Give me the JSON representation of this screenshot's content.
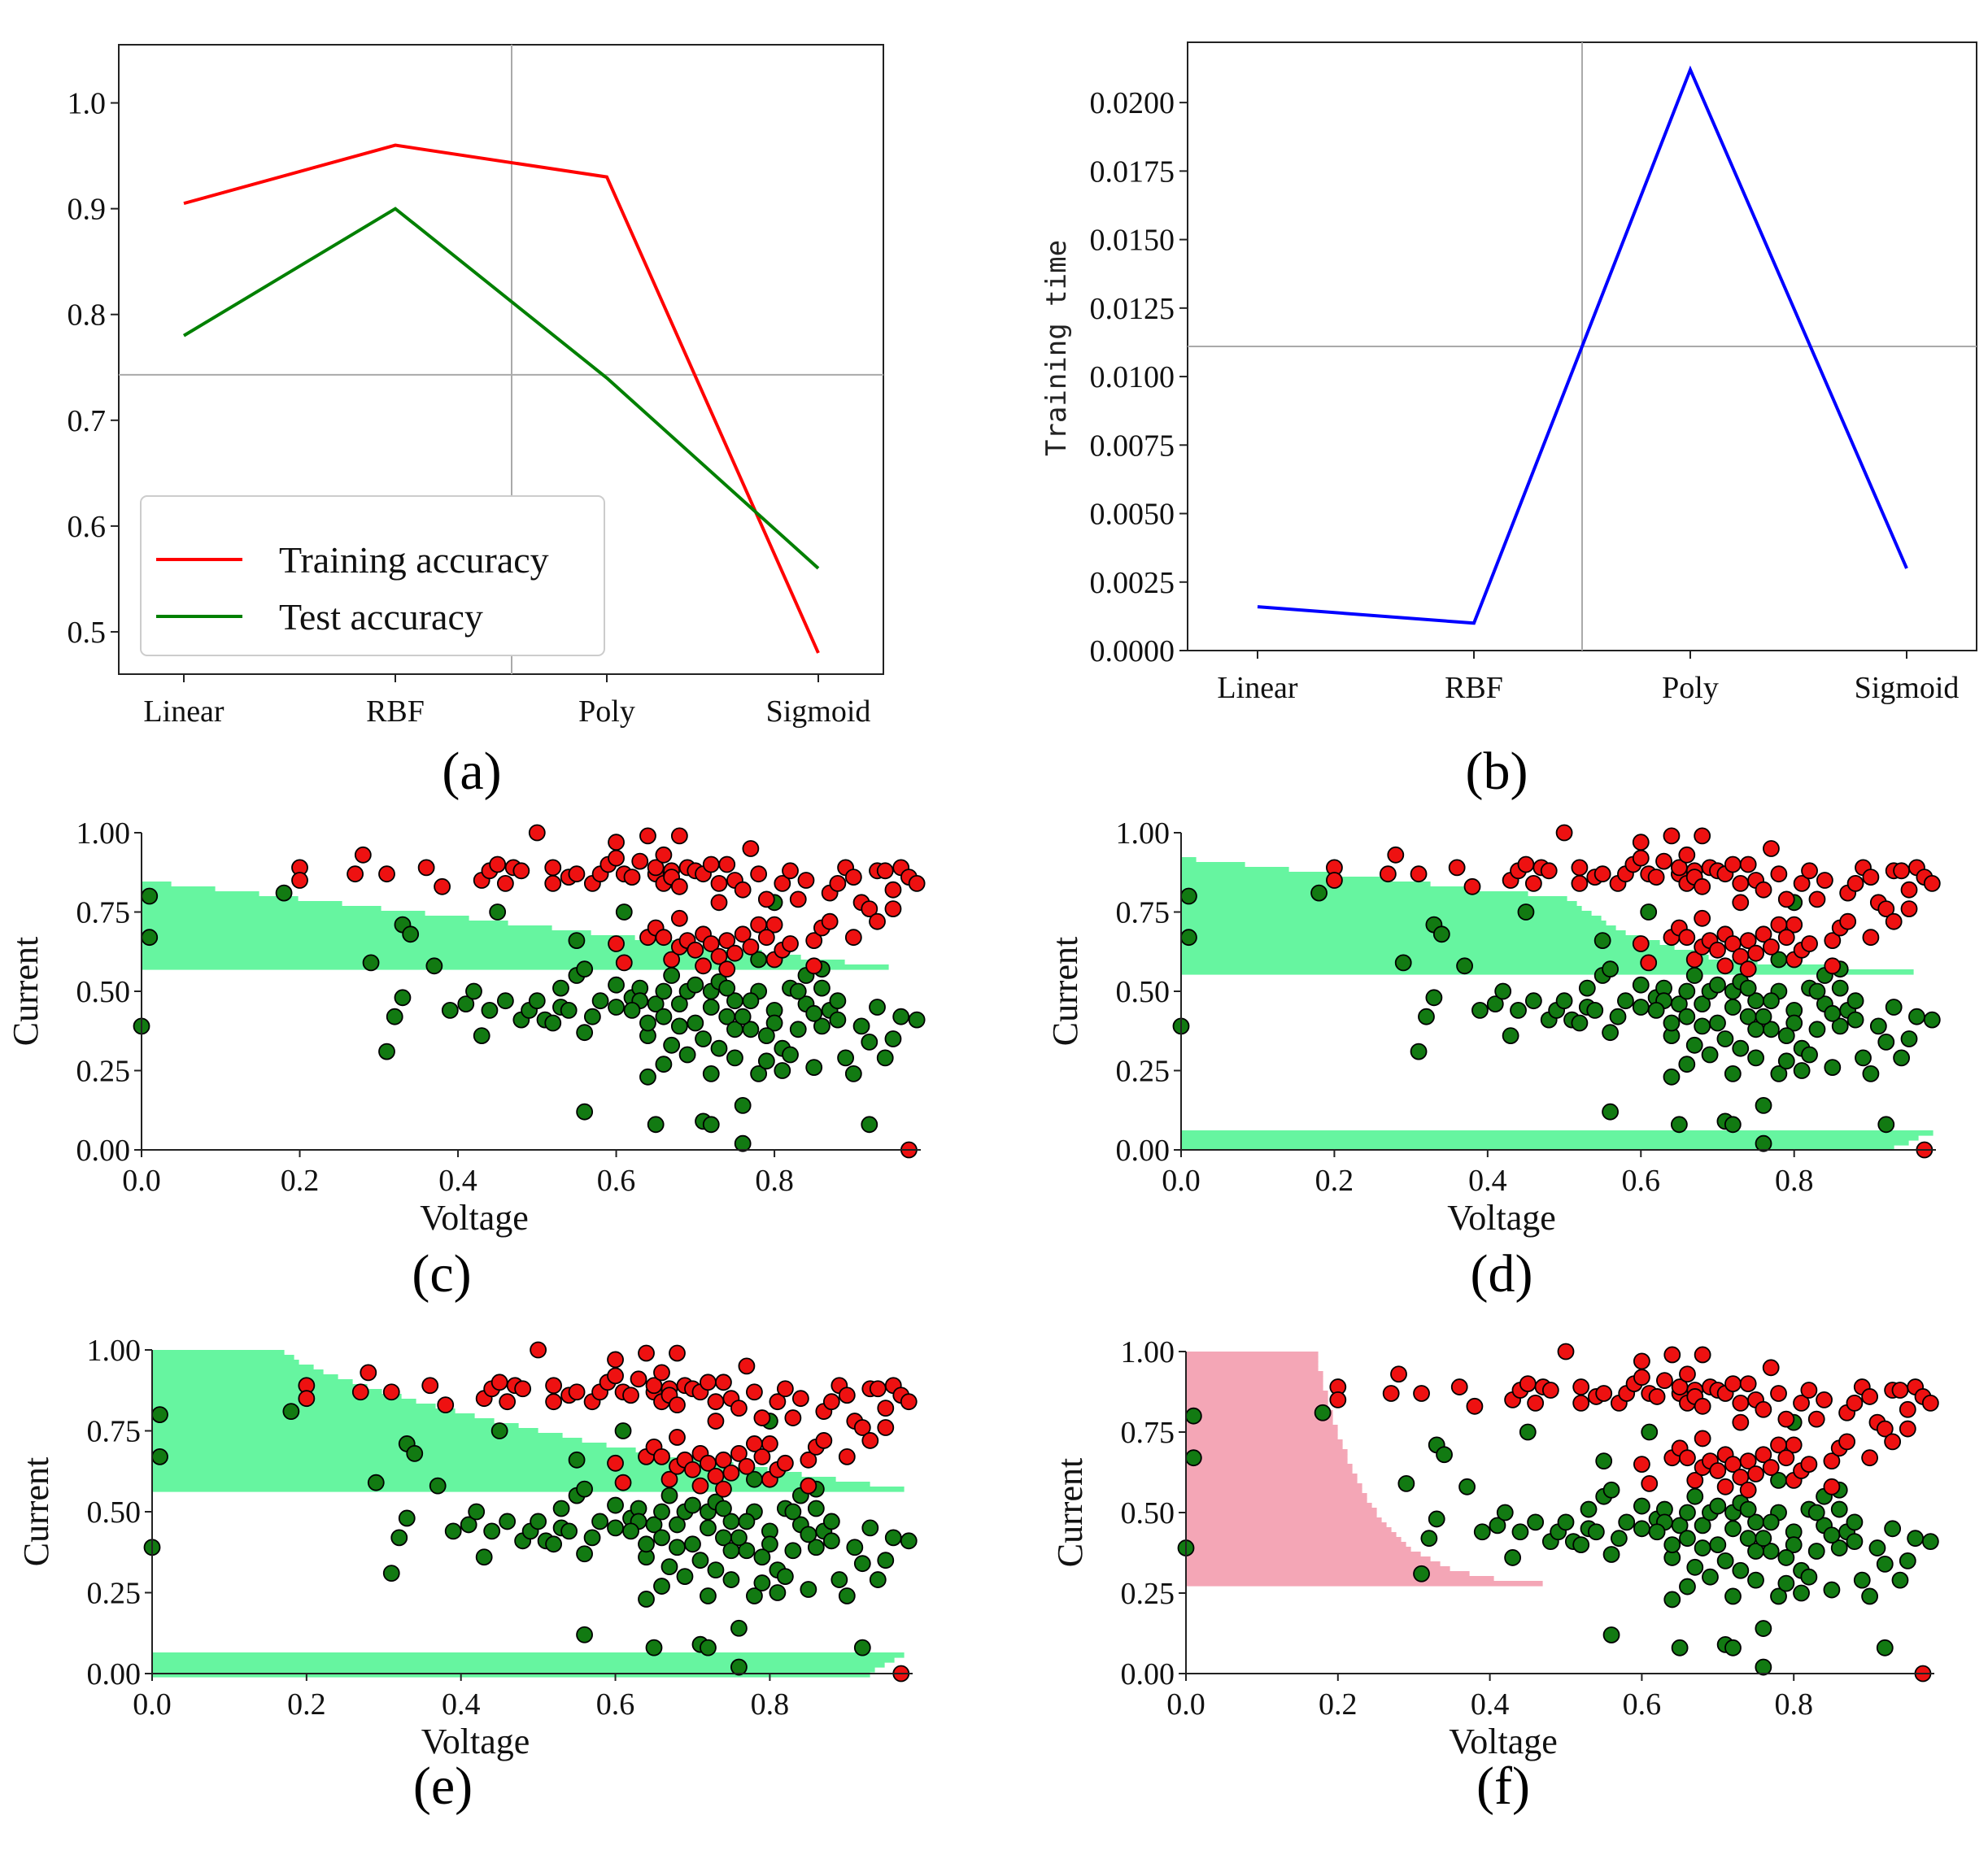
{
  "panels": {
    "a": {
      "label": "(a)",
      "chart_data": {
        "type": "line",
        "categories": [
          "Linear",
          "RBF",
          "Poly",
          "Sigmoid"
        ],
        "series": [
          {
            "name": "Training accuracy",
            "values": [
              0.905,
              0.96,
              0.93,
              0.48
            ],
            "color": "#ff0000"
          },
          {
            "name": "Test accuracy",
            "values": [
              0.78,
              0.9,
              0.74,
              0.56
            ],
            "color": "#008000"
          }
        ],
        "yticks": [
          "0.5",
          "0.6",
          "0.7",
          "0.8",
          "0.9",
          "1.0"
        ],
        "ylim": [
          0.46,
          1.055
        ],
        "crosshair": {
          "x_index": 1.55,
          "y": 0.743
        },
        "legend_position": "lower-left",
        "xlabel": "",
        "ylabel": ""
      }
    },
    "b": {
      "label": "(b)",
      "chart_data": {
        "type": "line",
        "categories": [
          "Linear",
          "RBF",
          "Poly",
          "Sigmoid"
        ],
        "series": [
          {
            "name": "Training time",
            "values": [
              0.0016,
              0.001,
              0.0212,
              0.003
            ],
            "color": "#0000ff"
          }
        ],
        "yticks": [
          "0.0000",
          "0.0025",
          "0.0050",
          "0.0075",
          "0.0100",
          "0.0125",
          "0.0150",
          "0.0175",
          "0.0200"
        ],
        "ylim": [
          0,
          0.0222
        ],
        "crosshair": {
          "x_index": 1.5,
          "y": 0.0111
        },
        "xlabel": "",
        "ylabel": "Training time"
      }
    },
    "scatter": {
      "xlabel": "Voltage",
      "ylabel": "Current",
      "xticks": [
        "0.0",
        "0.2",
        "0.4",
        "0.6",
        "0.8"
      ],
      "yticks": [
        "0.00",
        "0.25",
        "0.50",
        "0.75",
        "1.00"
      ],
      "xlim": [
        0,
        0.985
      ],
      "ylim": [
        0,
        1.0
      ],
      "class_colors": {
        "red_region": "#f4a6b6",
        "green_region": "#66f5a0",
        "red_point": "#ee1111",
        "green_point": "#127a12"
      },
      "red_points": [
        [
          0.2,
          0.89
        ],
        [
          0.2,
          0.85
        ],
        [
          0.28,
          0.93
        ],
        [
          0.27,
          0.87
        ],
        [
          0.31,
          0.87
        ],
        [
          0.36,
          0.89
        ],
        [
          0.38,
          0.83
        ],
        [
          0.43,
          0.85
        ],
        [
          0.44,
          0.88
        ],
        [
          0.45,
          0.9
        ],
        [
          0.46,
          0.84
        ],
        [
          0.47,
          0.89
        ],
        [
          0.48,
          0.88
        ],
        [
          0.5,
          1.0
        ],
        [
          0.52,
          0.84
        ],
        [
          0.52,
          0.89
        ],
        [
          0.54,
          0.86
        ],
        [
          0.55,
          0.87
        ],
        [
          0.57,
          0.84
        ],
        [
          0.58,
          0.87
        ],
        [
          0.59,
          0.9
        ],
        [
          0.6,
          0.92
        ],
        [
          0.6,
          0.97
        ],
        [
          0.61,
          0.87
        ],
        [
          0.62,
          0.86
        ],
        [
          0.63,
          0.91
        ],
        [
          0.64,
          0.99
        ],
        [
          0.65,
          0.87
        ],
        [
          0.65,
          0.89
        ],
        [
          0.66,
          0.84
        ],
        [
          0.66,
          0.93
        ],
        [
          0.67,
          0.88
        ],
        [
          0.67,
          0.86
        ],
        [
          0.68,
          0.99
        ],
        [
          0.68,
          0.83
        ],
        [
          0.69,
          0.89
        ],
        [
          0.7,
          0.88
        ],
        [
          0.71,
          0.87
        ],
        [
          0.72,
          0.9
        ],
        [
          0.73,
          0.78
        ],
        [
          0.73,
          0.84
        ],
        [
          0.74,
          0.9
        ],
        [
          0.75,
          0.85
        ],
        [
          0.76,
          0.82
        ],
        [
          0.77,
          0.95
        ],
        [
          0.78,
          0.87
        ],
        [
          0.79,
          0.79
        ],
        [
          0.8,
          0.71
        ],
        [
          0.81,
          0.84
        ],
        [
          0.82,
          0.88
        ],
        [
          0.83,
          0.79
        ],
        [
          0.84,
          0.85
        ],
        [
          0.85,
          0.66
        ],
        [
          0.86,
          0.7
        ],
        [
          0.87,
          0.81
        ],
        [
          0.88,
          0.84
        ],
        [
          0.89,
          0.89
        ],
        [
          0.9,
          0.86
        ],
        [
          0.91,
          0.78
        ],
        [
          0.92,
          0.76
        ],
        [
          0.93,
          0.88
        ],
        [
          0.94,
          0.88
        ],
        [
          0.95,
          0.82
        ],
        [
          0.96,
          0.89
        ],
        [
          0.97,
          0.86
        ],
        [
          0.98,
          0.84
        ],
        [
          0.6,
          0.65
        ],
        [
          0.61,
          0.59
        ],
        [
          0.64,
          0.67
        ],
        [
          0.65,
          0.7
        ],
        [
          0.66,
          0.67
        ],
        [
          0.67,
          0.6
        ],
        [
          0.68,
          0.64
        ],
        [
          0.69,
          0.66
        ],
        [
          0.7,
          0.63
        ],
        [
          0.71,
          0.68
        ],
        [
          0.72,
          0.65
        ],
        [
          0.73,
          0.61
        ],
        [
          0.74,
          0.66
        ],
        [
          0.75,
          0.62
        ],
        [
          0.76,
          0.68
        ],
        [
          0.77,
          0.64
        ],
        [
          0.78,
          0.71
        ],
        [
          0.79,
          0.67
        ],
        [
          0.8,
          0.6
        ],
        [
          0.81,
          0.63
        ],
        [
          0.82,
          0.65
        ],
        [
          0.85,
          0.58
        ],
        [
          0.87,
          0.72
        ],
        [
          0.9,
          0.67
        ],
        [
          0.93,
          0.72
        ],
        [
          0.95,
          0.76
        ],
        [
          0.68,
          0.73
        ],
        [
          0.71,
          0.58
        ],
        [
          0.74,
          0.57
        ],
        [
          0.97,
          0.0
        ]
      ],
      "green_points": [
        [
          0.0,
          0.39
        ],
        [
          0.01,
          0.8
        ],
        [
          0.01,
          0.67
        ],
        [
          0.18,
          0.81
        ],
        [
          0.29,
          0.59
        ],
        [
          0.31,
          0.31
        ],
        [
          0.32,
          0.42
        ],
        [
          0.33,
          0.48
        ],
        [
          0.33,
          0.71
        ],
        [
          0.34,
          0.68
        ],
        [
          0.37,
          0.58
        ],
        [
          0.39,
          0.44
        ],
        [
          0.41,
          0.46
        ],
        [
          0.42,
          0.5
        ],
        [
          0.43,
          0.36
        ],
        [
          0.44,
          0.44
        ],
        [
          0.45,
          0.75
        ],
        [
          0.46,
          0.47
        ],
        [
          0.48,
          0.41
        ],
        [
          0.49,
          0.44
        ],
        [
          0.5,
          0.47
        ],
        [
          0.51,
          0.41
        ],
        [
          0.52,
          0.4
        ],
        [
          0.53,
          0.51
        ],
        [
          0.53,
          0.45
        ],
        [
          0.54,
          0.44
        ],
        [
          0.55,
          0.55
        ],
        [
          0.55,
          0.66
        ],
        [
          0.56,
          0.37
        ],
        [
          0.56,
          0.57
        ],
        [
          0.57,
          0.42
        ],
        [
          0.58,
          0.47
        ],
        [
          0.6,
          0.52
        ],
        [
          0.61,
          0.75
        ],
        [
          0.62,
          0.48
        ],
        [
          0.63,
          0.51
        ],
        [
          0.64,
          0.23
        ],
        [
          0.64,
          0.36
        ],
        [
          0.65,
          0.46
        ],
        [
          0.66,
          0.27
        ],
        [
          0.66,
          0.42
        ],
        [
          0.67,
          0.55
        ],
        [
          0.68,
          0.46
        ],
        [
          0.69,
          0.5
        ],
        [
          0.7,
          0.4
        ],
        [
          0.71,
          0.35
        ],
        [
          0.72,
          0.24
        ],
        [
          0.72,
          0.5
        ],
        [
          0.73,
          0.53
        ],
        [
          0.74,
          0.42
        ],
        [
          0.75,
          0.29
        ],
        [
          0.75,
          0.47
        ],
        [
          0.76,
          0.14
        ],
        [
          0.77,
          0.38
        ],
        [
          0.78,
          0.24
        ],
        [
          0.79,
          0.28
        ],
        [
          0.8,
          0.44
        ],
        [
          0.81,
          0.32
        ],
        [
          0.82,
          0.51
        ],
        [
          0.83,
          0.38
        ],
        [
          0.84,
          0.46
        ],
        [
          0.85,
          0.26
        ],
        [
          0.86,
          0.51
        ],
        [
          0.87,
          0.44
        ],
        [
          0.88,
          0.41
        ],
        [
          0.89,
          0.29
        ],
        [
          0.9,
          0.24
        ],
        [
          0.91,
          0.39
        ],
        [
          0.92,
          0.34
        ],
        [
          0.93,
          0.45
        ],
        [
          0.94,
          0.29
        ],
        [
          0.95,
          0.35
        ],
        [
          0.96,
          0.42
        ],
        [
          0.98,
          0.41
        ],
        [
          0.56,
          0.12
        ],
        [
          0.65,
          0.08
        ],
        [
          0.71,
          0.09
        ],
        [
          0.72,
          0.08
        ],
        [
          0.76,
          0.02
        ],
        [
          0.92,
          0.08
        ],
        [
          0.6,
          0.45
        ],
        [
          0.63,
          0.47
        ],
        [
          0.68,
          0.39
        ],
        [
          0.7,
          0.52
        ],
        [
          0.74,
          0.51
        ],
        [
          0.78,
          0.5
        ],
        [
          0.8,
          0.4
        ],
        [
          0.82,
          0.3
        ],
        [
          0.84,
          0.55
        ],
        [
          0.86,
          0.39
        ],
        [
          0.88,
          0.47
        ],
        [
          0.79,
          0.36
        ],
        [
          0.77,
          0.47
        ],
        [
          0.81,
          0.25
        ],
        [
          0.69,
          0.3
        ],
        [
          0.73,
          0.32
        ],
        [
          0.83,
          0.5
        ],
        [
          0.75,
          0.38
        ],
        [
          0.62,
          0.44
        ],
        [
          0.67,
          0.33
        ],
        [
          0.85,
          0.43
        ],
        [
          0.78,
          0.6
        ],
        [
          0.8,
          0.78
        ],
        [
          0.86,
          0.57
        ],
        [
          0.76,
          0.42
        ],
        [
          0.72,
          0.45
        ],
        [
          0.66,
          0.5
        ],
        [
          0.64,
          0.4
        ]
      ],
      "c": {
        "label": "(c)",
        "boundary": "linear"
      },
      "d": {
        "label": "(d)",
        "boundary": "rbf"
      },
      "e": {
        "label": "(e)",
        "boundary": "poly"
      },
      "f": {
        "label": "(f)",
        "boundary": "sigmoid"
      }
    }
  }
}
